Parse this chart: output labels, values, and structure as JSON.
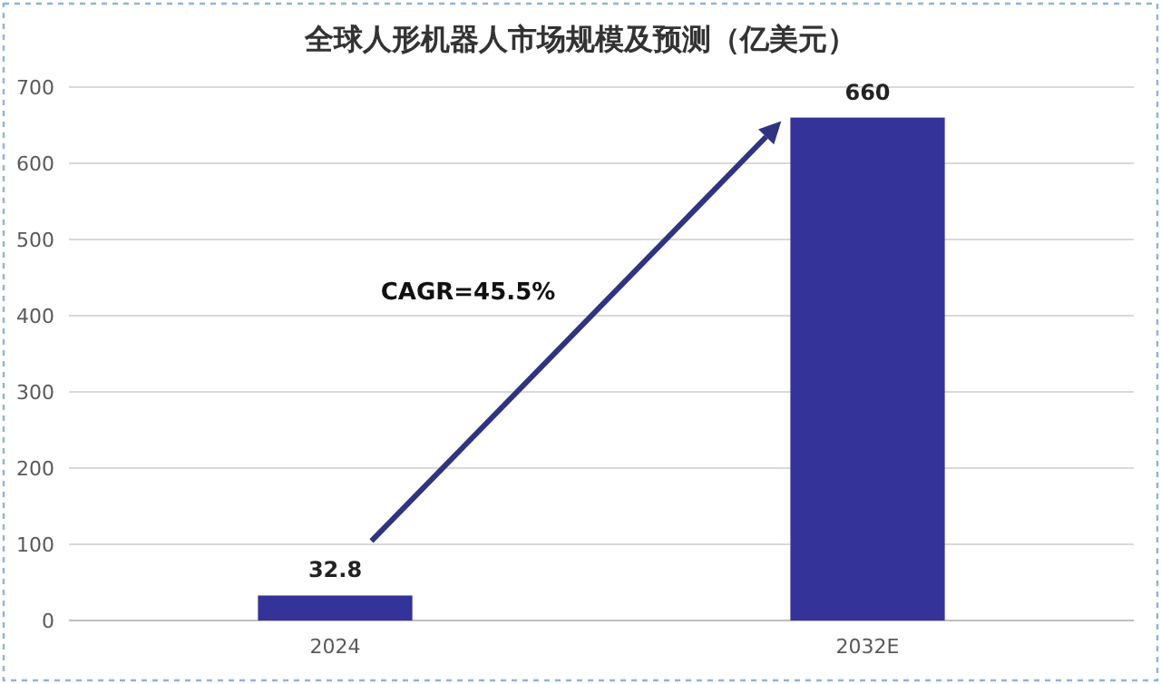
{
  "chart_data": {
    "type": "bar",
    "title": "全球人形机器人市场规模及预测（亿美元）",
    "categories": [
      "2024",
      "2032E"
    ],
    "values": [
      32.8,
      660
    ],
    "color": "#333399",
    "ylim": [
      0,
      700
    ],
    "yticks": [
      0,
      100,
      200,
      300,
      400,
      500,
      600,
      700
    ],
    "grid": "y",
    "data_labels": true,
    "annotations": [
      "CAGR=45.5%"
    ]
  }
}
